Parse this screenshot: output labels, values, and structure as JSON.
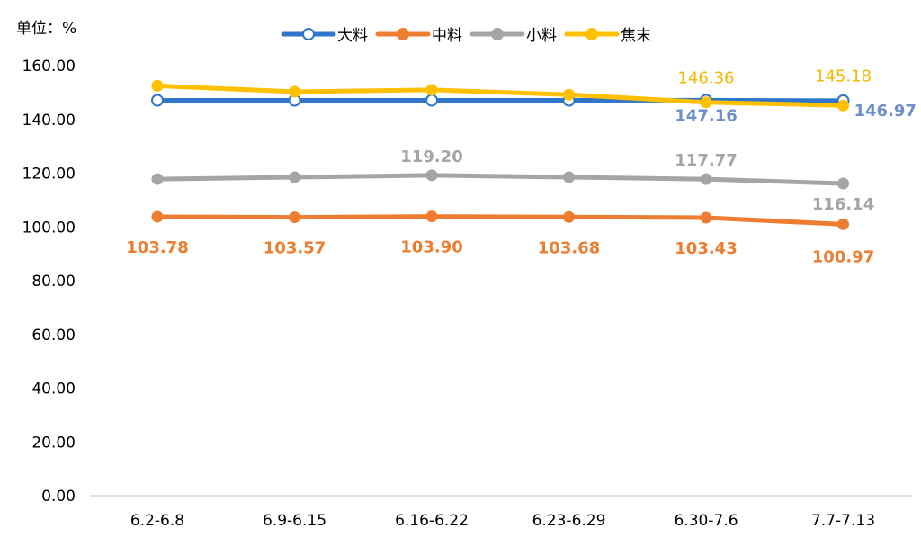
{
  "chart_data": {
    "type": "line",
    "unit_label": "单位：%",
    "categories": [
      "6.2-6.8",
      "6.9-6.15",
      "6.16-6.22",
      "6.23-6.29",
      "6.30-7.6",
      "7.7-7.13"
    ],
    "y_ticks": [
      "0.00",
      "20.00",
      "40.00",
      "60.00",
      "80.00",
      "100.00",
      "120.00",
      "140.00",
      "160.00"
    ],
    "ylim": [
      0,
      160
    ],
    "grid": false,
    "legend_position": "top",
    "series": [
      {
        "name": "大料",
        "color": "#2F75C8",
        "marker": "hollow-circle",
        "values": [
          147.1,
          147.1,
          147.1,
          147.1,
          147.16,
          146.97
        ],
        "labels": [
          "",
          "",
          "",
          "",
          "147.16",
          "146.97"
        ],
        "label_color": "#6F8FC9",
        "label_bold": true
      },
      {
        "name": "中料",
        "color": "#ED7D31",
        "marker": "filled-circle",
        "values": [
          103.78,
          103.57,
          103.9,
          103.68,
          103.43,
          100.97
        ],
        "labels": [
          "103.78",
          "103.57",
          "103.90",
          "103.68",
          "103.43",
          "100.97"
        ],
        "label_color": "#ED7D31",
        "label_bold": true
      },
      {
        "name": "小料",
        "color": "#A5A5A5",
        "marker": "filled-circle",
        "values": [
          117.8,
          118.5,
          119.2,
          118.5,
          117.77,
          116.14
        ],
        "labels": [
          "",
          "",
          "119.20",
          "",
          "117.77",
          "116.14"
        ],
        "label_color": "#A5A5A5",
        "label_bold": true
      },
      {
        "name": "焦末",
        "color": "#FFC000",
        "marker": "filled-circle",
        "values": [
          152.5,
          150.3,
          151.0,
          149.2,
          146.36,
          145.18
        ],
        "labels": [
          "",
          "",
          "",
          "",
          "146.36",
          "145.18"
        ],
        "label_color": "#F5B800",
        "label_bold": false
      }
    ]
  }
}
